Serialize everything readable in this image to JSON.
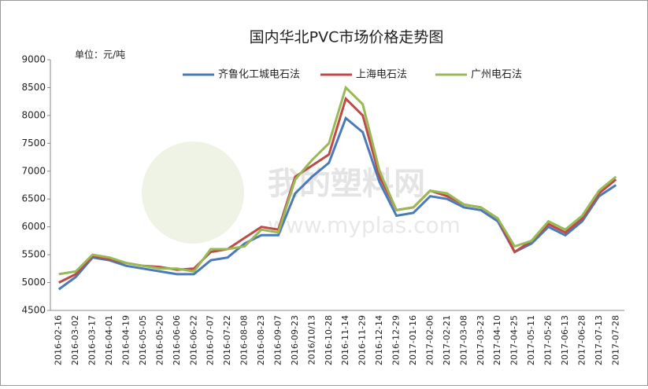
{
  "chart_data": {
    "type": "line",
    "title": "国内华北PVC市场价格走势图",
    "unit_note": "单位：元/吨",
    "watermark": "我的塑料网",
    "watermark_url": "www.myplas.com",
    "categories": [
      "2016-02-16",
      "2016-03-02",
      "2016-03-17",
      "2016-04-01",
      "2016-04-19",
      "2016-05-05",
      "2016-05-20",
      "2016-06-06",
      "2016-06-22",
      "2016-07-07",
      "2016-07-22",
      "2016-08-08",
      "2016-08-23",
      "2016-09-07",
      "2016-09-23",
      "2016/10/13",
      "2016-10-28",
      "2016-11-14",
      "2016-11-29",
      "2016-12-14",
      "2016-12-29",
      "2017-01-16",
      "2017-02-06",
      "2017-02-21",
      "2017-03-08",
      "2017-03-23",
      "2017-04-10",
      "2017-04-25",
      "2017-05-11",
      "2017-05-26",
      "2017-06-13",
      "2017-06-28",
      "2017-07-13",
      "2017-07-28"
    ],
    "series": [
      {
        "name": "齐鲁化工城电石法",
        "color": "#4a7ab8",
        "values": [
          4880,
          5100,
          5450,
          5400,
          5300,
          5250,
          5200,
          5150,
          5150,
          5400,
          5450,
          5700,
          5850,
          5850,
          6600,
          6900,
          7150,
          7950,
          7700,
          6800,
          6200,
          6250,
          6550,
          6500,
          6350,
          6300,
          6100,
          5550,
          5700,
          6000,
          5850,
          6100,
          6550,
          6750
        ]
      },
      {
        "name": "上海电石法",
        "color": "#be4b48",
        "values": [
          5000,
          5150,
          5480,
          5420,
          5350,
          5300,
          5280,
          5230,
          5250,
          5550,
          5600,
          5800,
          6000,
          5950,
          6900,
          7100,
          7300,
          8300,
          8000,
          6900,
          6300,
          6350,
          6650,
          6550,
          6400,
          6350,
          6150,
          5550,
          5750,
          6050,
          5900,
          6150,
          6600,
          6850
        ]
      },
      {
        "name": "广州电石法",
        "color": "#98b954",
        "values": [
          5150,
          5200,
          5500,
          5450,
          5350,
          5300,
          5250,
          5250,
          5200,
          5600,
          5600,
          5650,
          5950,
          5900,
          6850,
          7200,
          7500,
          8500,
          8200,
          7000,
          6300,
          6350,
          6650,
          6600,
          6400,
          6350,
          6150,
          5650,
          5750,
          6100,
          5950,
          6200,
          6650,
          6900
        ]
      }
    ],
    "ylim": [
      4500,
      9000
    ],
    "yticks": [
      4500,
      5000,
      5500,
      6000,
      6500,
      7000,
      7500,
      8000,
      8500,
      9000
    ],
    "grid": false
  }
}
